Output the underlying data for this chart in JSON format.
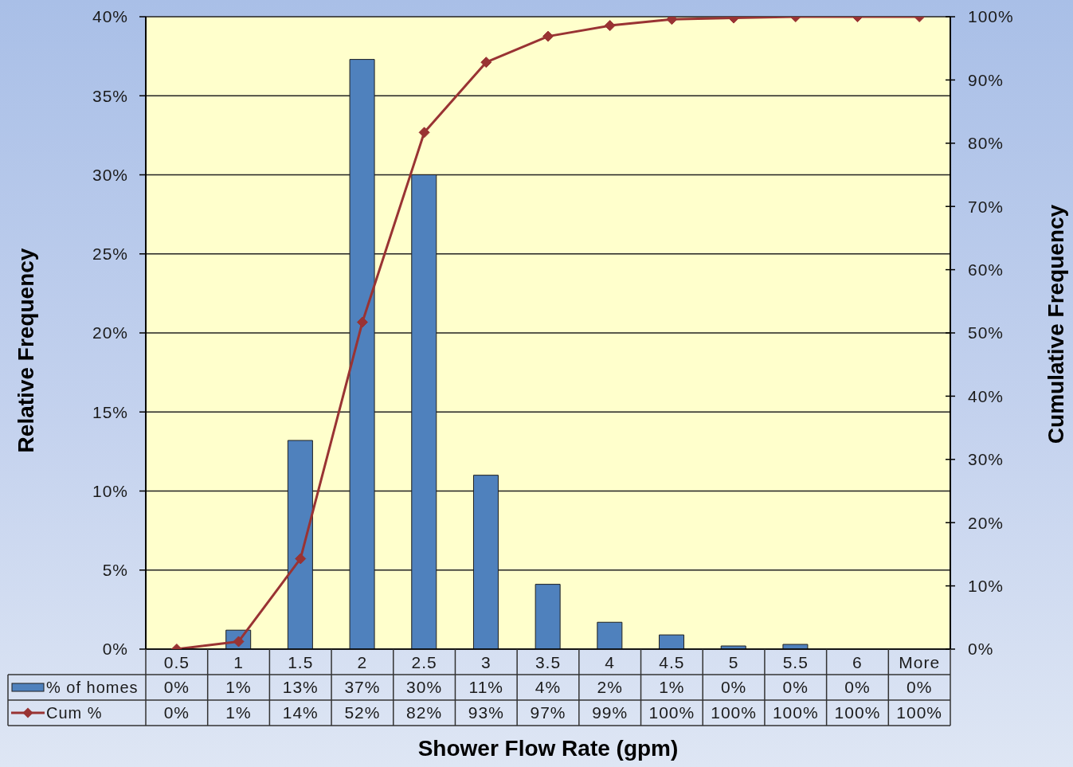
{
  "chart_data": {
    "type": "bar",
    "xlabel": "Shower Flow Rate (gpm)",
    "ylabel": "Relative Frequency",
    "y2label": "Cumulative Frequency",
    "categories": [
      "0.5",
      "1",
      "1.5",
      "2",
      "2.5",
      "3",
      "3.5",
      "4",
      "4.5",
      "5",
      "5.5",
      "6",
      "More"
    ],
    "series": [
      {
        "name": "% of homes",
        "color": "#4f81bd",
        "values": [
          0,
          1.2,
          13.2,
          37.3,
          30.0,
          11.0,
          4.1,
          1.7,
          0.9,
          0.2,
          0.3,
          0,
          0
        ],
        "value_labels": [
          "0%",
          "1%",
          "13%",
          "37%",
          "30%",
          "11%",
          "4%",
          "2%",
          "1%",
          "0%",
          "0%",
          "0%",
          "0%"
        ]
      },
      {
        "name": "Cum %",
        "type": "line",
        "axis": "y2",
        "color": "#993333",
        "values": [
          0,
          1.2,
          14.3,
          51.7,
          81.7,
          92.8,
          96.9,
          98.6,
          99.6,
          99.8,
          100,
          100,
          100
        ],
        "value_labels": [
          "0%",
          "1%",
          "14%",
          "52%",
          "82%",
          "93%",
          "97%",
          "99%",
          "100%",
          "100%",
          "100%",
          "100%",
          "100%"
        ]
      }
    ],
    "ylim": [
      0,
      40
    ],
    "yticks": [
      {
        "value": 0,
        "label": "0%"
      },
      {
        "value": 5,
        "label": "5%"
      },
      {
        "value": 10,
        "label": "10%"
      },
      {
        "value": 15,
        "label": "15%"
      },
      {
        "value": 20,
        "label": "20%"
      },
      {
        "value": 25,
        "label": "25%"
      },
      {
        "value": 30,
        "label": "30%"
      },
      {
        "value": 35,
        "label": "35%"
      },
      {
        "value": 40,
        "label": "40%"
      }
    ],
    "y2lim": [
      0,
      100
    ],
    "y2ticks": [
      {
        "value": 0,
        "label": "0%"
      },
      {
        "value": 10,
        "label": "10%"
      },
      {
        "value": 20,
        "label": "20%"
      },
      {
        "value": 30,
        "label": "30%"
      },
      {
        "value": 40,
        "label": "40%"
      },
      {
        "value": 50,
        "label": "50%"
      },
      {
        "value": 60,
        "label": "60%"
      },
      {
        "value": 70,
        "label": "70%"
      },
      {
        "value": 80,
        "label": "80%"
      },
      {
        "value": 90,
        "label": "90%"
      },
      {
        "value": 100,
        "label": "100%"
      }
    ],
    "grid": "y",
    "legend": "bottom left",
    "marker": "diamond"
  }
}
